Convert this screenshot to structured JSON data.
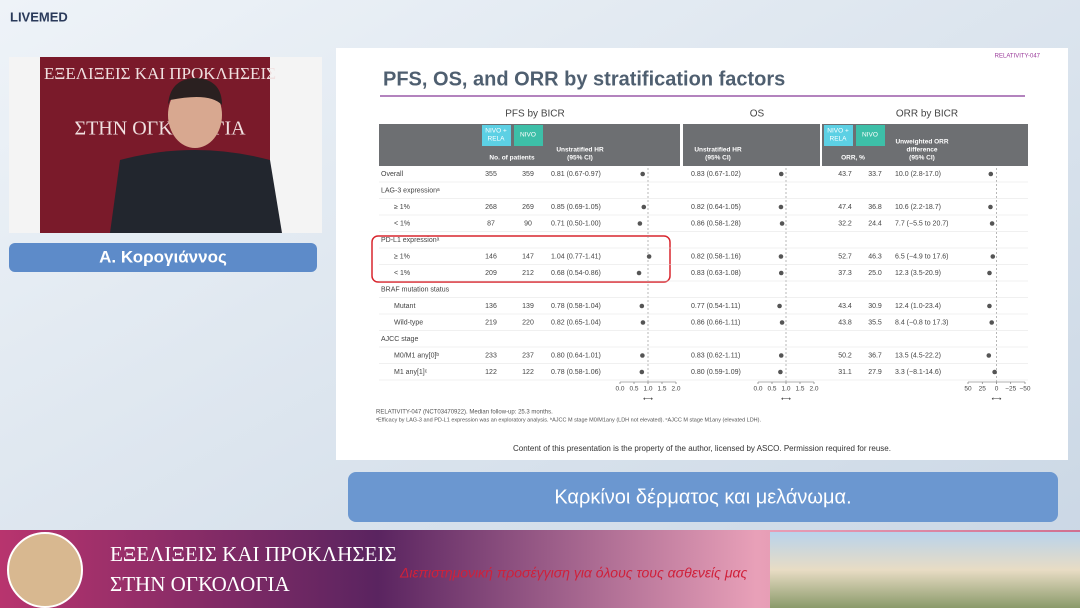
{
  "brand": "LIVEMED",
  "speaker": "Α. Κορογιάννος",
  "caption": "Καρκίνοι δέρματος και μελάνωμα.",
  "banner": {
    "line1": "ΕΞΕΛΙΞΕΙΣ ΚΑΙ ΠΡΟΚΛΗΣΕΙΣ",
    "line2": "ΣΤΗΝ ΟΓΚΟΛΟΓΙΑ",
    "tagline": "Διεπιστημονική προσέγγιση για όλους τους ασθενείς μας"
  },
  "slide": {
    "tag": "RELATIVITY-047",
    "title": "PFS, OS, and ORR by stratification factors",
    "sections": [
      "PFS by BICR",
      "OS",
      "ORR by BICR"
    ],
    "header": {
      "nivo_rela": [
        "NIVO +",
        "RELA"
      ],
      "nivo": "NIVO",
      "n_patients": "No. of patients",
      "unstrat": [
        "Unstratified HR",
        "(95% CI)"
      ],
      "orr_pct": "ORR, %",
      "unweighted": [
        "Unweighted ORR",
        "difference",
        "(95% CI)"
      ]
    },
    "rows": [
      {
        "label": "Overall",
        "cells": [
          "355",
          "359",
          "0.81 (0.67-0.97)",
          "0.83 (0.67-1.02)",
          "43.7",
          "33.7",
          "10.0 (2.8-17.0)"
        ]
      },
      {
        "label": "LAG-3 expressionᵃ"
      },
      {
        "label": "≥ 1%",
        "cells": [
          "268",
          "269",
          "0.85 (0.69-1.05)",
          "0.82 (0.64-1.05)",
          "47.4",
          "36.8",
          "10.6 (2.2-18.7)"
        ]
      },
      {
        "label": "< 1%",
        "cells": [
          "87",
          "90",
          "0.71 (0.50-1.00)",
          "0.86 (0.58-1.28)",
          "32.2",
          "24.4",
          "7.7 (−5.5 to 20.7)"
        ]
      },
      {
        "label": "PD-L1 expressionᵃ"
      },
      {
        "label": "≥ 1%",
        "cells": [
          "146",
          "147",
          "1.04 (0.77-1.41)",
          "0.82 (0.58-1.16)",
          "52.7",
          "46.3",
          "6.5 (−4.9 to 17.6)"
        ]
      },
      {
        "label": "< 1%",
        "cells": [
          "209",
          "212",
          "0.68 (0.54-0.86)",
          "0.83 (0.63-1.08)",
          "37.3",
          "25.0",
          "12.3 (3.5-20.9)"
        ]
      },
      {
        "label": "BRAF mutation status"
      },
      {
        "label": "Mutant",
        "cells": [
          "136",
          "139",
          "0.78 (0.58-1.04)",
          "0.77 (0.54-1.11)",
          "43.4",
          "30.9",
          "12.4 (1.0-23.4)"
        ]
      },
      {
        "label": "Wild-type",
        "cells": [
          "219",
          "220",
          "0.82 (0.65-1.04)",
          "0.86 (0.66-1.11)",
          "43.8",
          "35.5",
          "8.4 (−0.8 to 17.3)"
        ]
      },
      {
        "label": "AJCC stage"
      },
      {
        "label": "M0/M1 any[0]ᵇ",
        "cells": [
          "233",
          "237",
          "0.80 (0.64-1.01)",
          "0.83 (0.62-1.11)",
          "50.2",
          "36.7",
          "13.5 (4.5-22.2)"
        ]
      },
      {
        "label": "M1 any[1]ᶜ",
        "cells": [
          "122",
          "122",
          "0.78 (0.58-1.06)",
          "0.80 (0.59-1.09)",
          "31.1",
          "27.9",
          "3.3 (−8.1-14.6)"
        ]
      }
    ],
    "axes": {
      "pfs": {
        "lim": [
          0,
          2
        ],
        "ticks": [
          {
            "value": 0,
            "label": "0.0"
          },
          0.5,
          {
            "value": 1,
            "label": "1.0"
          },
          1.5,
          {
            "value": 2,
            "label": "2.0"
          }
        ]
      },
      "os": {
        "lim": [
          0,
          2
        ],
        "ticks": [
          {
            "value": 0,
            "label": "0.0"
          },
          0.5,
          {
            "value": 1,
            "label": "1.0"
          },
          1.5,
          {
            "value": 2,
            "label": "2.0"
          }
        ]
      },
      "orr": {
        "lim": [
          50,
          -50
        ],
        "ticks": [
          50,
          25,
          0,
          {
            "value": -25,
            "label": "−25"
          },
          {
            "value": -50,
            "label": "−50"
          }
        ]
      }
    },
    "axis_legend": {
      "left": "NIVO + RELA",
      "right": "NIVO"
    },
    "footnotes": [
      "RELATIVITY-047 (NCT03470922). Median follow-up: 25.3 months.",
      "ᵃEfficacy by LAG-3 and PD-L1 expression was an exploratory analysis. ᵇAJCC M stage M0/M1any (LDH not elevated). ᶜAJCC M stage M1any (elevated LDH)."
    ],
    "copyright": "Content of this presentation is the property of the author, licensed by ASCO. Permission required for reuse."
  }
}
